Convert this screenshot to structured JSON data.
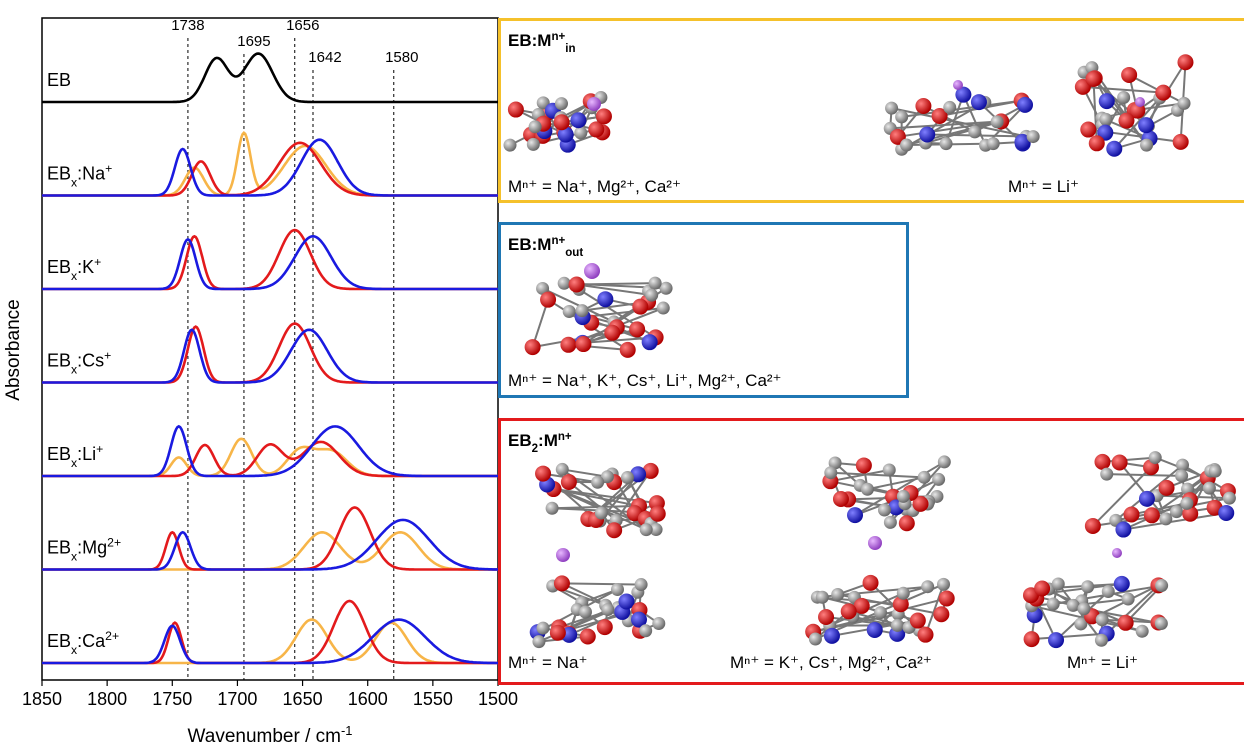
{
  "chart_data": {
    "type": "spectra",
    "xlabel": [
      {
        "text": "Wavenumber / cm"
      },
      {
        "text": "-1",
        "style": "sup"
      }
    ],
    "ylabel": "Absorbance",
    "xlim": [
      1850,
      1500
    ],
    "xticks": [
      1850,
      1800,
      1750,
      1700,
      1650,
      1600,
      1550,
      1500
    ],
    "reference_lines": [
      1738,
      1695,
      1656,
      1642,
      1580
    ],
    "panels": [
      {
        "label": [
          {
            "text": "EB"
          }
        ],
        "series": [
          {
            "color": "#000000",
            "peaks": [
              {
                "center": 1716,
                "height": 0.7,
                "width": 9
              },
              {
                "center": 1684,
                "height": 0.78,
                "width": 11
              }
            ]
          }
        ]
      },
      {
        "label": [
          {
            "text": "EB"
          },
          {
            "text": "x",
            "style": "sub"
          },
          {
            "text": ":Na"
          },
          {
            "text": "+",
            "style": "sup"
          }
        ],
        "series": [
          {
            "color": "#f7b548",
            "peaks": [
              {
                "center": 1733,
                "height": 0.45,
                "width": 7
              },
              {
                "center": 1695,
                "height": 1.0,
                "width": 5
              },
              {
                "center": 1648,
                "height": 0.8,
                "width": 16
              }
            ]
          },
          {
            "color": "#e31a1c",
            "peaks": [
              {
                "center": 1728,
                "height": 0.55,
                "width": 7
              },
              {
                "center": 1652,
                "height": 0.85,
                "width": 16
              }
            ]
          },
          {
            "color": "#1a1ae0",
            "peaks": [
              {
                "center": 1742,
                "height": 0.75,
                "width": 6
              },
              {
                "center": 1637,
                "height": 0.9,
                "width": 14
              }
            ]
          }
        ]
      },
      {
        "label": [
          {
            "text": "EB"
          },
          {
            "text": "x",
            "style": "sub"
          },
          {
            "text": ":K"
          },
          {
            "text": "+",
            "style": "sup"
          }
        ],
        "series": [
          {
            "color": "#e31a1c",
            "peaks": [
              {
                "center": 1733,
                "height": 0.85,
                "width": 6
              },
              {
                "center": 1656,
                "height": 0.95,
                "width": 12
              }
            ]
          },
          {
            "color": "#1a1ae0",
            "peaks": [
              {
                "center": 1738,
                "height": 0.8,
                "width": 6
              },
              {
                "center": 1642,
                "height": 0.85,
                "width": 14
              }
            ]
          }
        ]
      },
      {
        "label": [
          {
            "text": "EB"
          },
          {
            "text": "x",
            "style": "sub"
          },
          {
            "text": ":Cs"
          },
          {
            "text": "+",
            "style": "sup"
          }
        ],
        "series": [
          {
            "color": "#e31a1c",
            "peaks": [
              {
                "center": 1732,
                "height": 0.9,
                "width": 6
              },
              {
                "center": 1656,
                "height": 0.95,
                "width": 12
              }
            ]
          },
          {
            "color": "#1a1ae0",
            "peaks": [
              {
                "center": 1735,
                "height": 0.85,
                "width": 6
              },
              {
                "center": 1645,
                "height": 0.85,
                "width": 14
              }
            ]
          }
        ]
      },
      {
        "label": [
          {
            "text": "EB"
          },
          {
            "text": "x",
            "style": "sub"
          },
          {
            "text": ":Li"
          },
          {
            "text": "+",
            "style": "sup"
          }
        ],
        "series": [
          {
            "color": "#f7b548",
            "peaks": [
              {
                "center": 1745,
                "height": 0.3,
                "width": 6
              },
              {
                "center": 1697,
                "height": 0.6,
                "width": 8
              },
              {
                "center": 1652,
                "height": 0.4,
                "width": 10
              },
              {
                "center": 1628,
                "height": 0.4,
                "width": 12
              }
            ]
          },
          {
            "color": "#e31a1c",
            "peaks": [
              {
                "center": 1725,
                "height": 0.5,
                "width": 7
              },
              {
                "center": 1675,
                "height": 0.5,
                "width": 10
              },
              {
                "center": 1636,
                "height": 0.55,
                "width": 14
              }
            ]
          },
          {
            "color": "#1a1ae0",
            "peaks": [
              {
                "center": 1745,
                "height": 0.8,
                "width": 6
              },
              {
                "center": 1625,
                "height": 0.8,
                "width": 18
              }
            ]
          }
        ]
      },
      {
        "label": [
          {
            "text": "EB"
          },
          {
            "text": "x",
            "style": "sub"
          },
          {
            "text": ":Mg"
          },
          {
            "text": "2+",
            "style": "sup"
          }
        ],
        "series": [
          {
            "color": "#f7b548",
            "peaks": [
              {
                "center": 1635,
                "height": 0.6,
                "width": 14
              },
              {
                "center": 1575,
                "height": 0.6,
                "width": 14
              }
            ]
          },
          {
            "color": "#e31a1c",
            "peaks": [
              {
                "center": 1750,
                "height": 0.6,
                "width": 5
              },
              {
                "center": 1610,
                "height": 1.0,
                "width": 12
              }
            ]
          },
          {
            "color": "#1a1ae0",
            "peaks": [
              {
                "center": 1742,
                "height": 0.6,
                "width": 6
              },
              {
                "center": 1573,
                "height": 0.8,
                "width": 20
              }
            ]
          }
        ]
      },
      {
        "label": [
          {
            "text": "EB"
          },
          {
            "text": "x",
            "style": "sub"
          },
          {
            "text": ":Ca"
          },
          {
            "text": "2+",
            "style": "sup"
          }
        ],
        "series": [
          {
            "color": "#f7b548",
            "peaks": [
              {
                "center": 1643,
                "height": 0.7,
                "width": 12
              },
              {
                "center": 1582,
                "height": 0.65,
                "width": 12
              }
            ]
          },
          {
            "color": "#e31a1c",
            "peaks": [
              {
                "center": 1748,
                "height": 0.65,
                "width": 5
              },
              {
                "center": 1614,
                "height": 1.0,
                "width": 12
              }
            ]
          },
          {
            "color": "#1a1ae0",
            "peaks": [
              {
                "center": 1750,
                "height": 0.6,
                "width": 6
              },
              {
                "center": 1576,
                "height": 0.7,
                "width": 20
              }
            ]
          }
        ]
      }
    ]
  },
  "structures": [
    {
      "color": "#f5c12b",
      "title": [
        {
          "text": "EB:M"
        },
        {
          "text": "n+",
          "style": "sup"
        },
        {
          "text": "in",
          "style": "sub"
        }
      ],
      "captions": [
        "Mⁿ⁺ = Na⁺, Mg²⁺, Ca²⁺",
        "Mⁿ⁺ = Li⁺"
      ]
    },
    {
      "color": "#1f77b4",
      "title": [
        {
          "text": "EB:M"
        },
        {
          "text": "n+",
          "style": "sup"
        },
        {
          "text": "out",
          "style": "sub"
        }
      ],
      "captions": [
        "Mⁿ⁺ = Na⁺, K⁺, Cs⁺, Li⁺, Mg²⁺, Ca²⁺"
      ]
    },
    {
      "color": "#e31a1c",
      "title": [
        {
          "text": "EB"
        },
        {
          "text": "2",
          "style": "sub"
        },
        {
          "text": ":M"
        },
        {
          "text": "n+",
          "style": "sup"
        }
      ],
      "captions": [
        "Mⁿ⁺ = Na⁺",
        "Mⁿ⁺ = K⁺, Cs⁺, Mg²⁺, Ca²⁺",
        "Mⁿ⁺ = Li⁺"
      ]
    }
  ]
}
